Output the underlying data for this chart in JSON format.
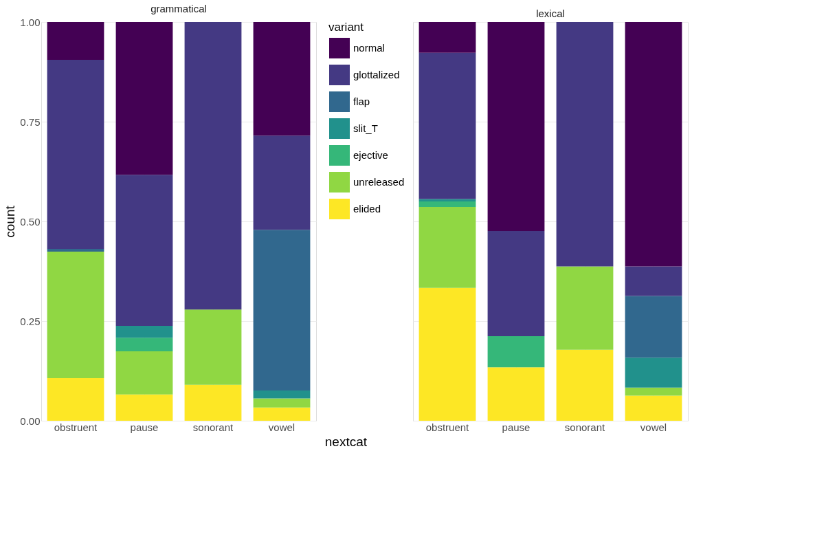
{
  "chart_data": [
    {
      "type": "bar",
      "title": "grammatical",
      "xlabel": "nextcat",
      "ylabel": "count",
      "legend_title": "variant",
      "legend": "right",
      "stacked": true,
      "grid": true,
      "categories": [
        "obstruent",
        "pause",
        "sonorant",
        "vowel"
      ],
      "ylim": [
        0,
        1
      ],
      "yticks": [
        {
          "value": 0,
          "label": "0.00"
        },
        {
          "value": 0.25,
          "label": "0.25"
        },
        {
          "value": 0.5,
          "label": "0.50"
        },
        {
          "value": 0.75,
          "label": "0.75"
        },
        {
          "value": 1,
          "label": "1.00"
        }
      ],
      "series": [
        {
          "name": "elided",
          "color": "#fde725",
          "values": [
            0.107,
            0.066,
            0.09,
            0.033
          ]
        },
        {
          "name": "unreleased",
          "color": "#90d743",
          "values": [
            0.317,
            0.108,
            0.189,
            0.023
          ]
        },
        {
          "name": "ejective",
          "color": "#35b779",
          "values": [
            0,
            0.034,
            0,
            0
          ]
        },
        {
          "name": "slit_T",
          "color": "#21918c",
          "values": [
            0,
            0.03,
            0,
            0.02
          ]
        },
        {
          "name": "flap",
          "color": "#31688e",
          "values": [
            0.007,
            0,
            0,
            0.403
          ]
        },
        {
          "name": "glottalized",
          "color": "#443983",
          "values": [
            0.474,
            0.379,
            0.721,
            0.236
          ]
        },
        {
          "name": "normal",
          "color": "#440154",
          "values": [
            0.095,
            0.383,
            0,
            0.285
          ]
        }
      ]
    },
    {
      "type": "bar",
      "title": "lexical",
      "stacked": true,
      "grid": true,
      "tick_labels": "x",
      "categories": [
        "obstruent",
        "pause",
        "sonorant",
        "vowel"
      ],
      "ylim": [
        0,
        1
      ],
      "yticks": [
        {
          "value": 0,
          "label": null
        },
        {
          "value": 0.25,
          "label": null
        },
        {
          "value": 0.5,
          "label": null
        },
        {
          "value": 0.75,
          "label": null
        },
        {
          "value": 1,
          "label": null
        }
      ],
      "series": [
        {
          "color": "#fde725",
          "values": [
            0.333,
            0.134,
            0.178,
            0.063
          ]
        },
        {
          "color": "#90d743",
          "values": [
            0.203,
            0,
            0.209,
            0.02
          ]
        },
        {
          "color": "#35b779",
          "values": [
            0.014,
            0.078,
            0,
            0
          ]
        },
        {
          "color": "#21918c",
          "values": [
            0.006,
            0,
            0,
            0.075
          ]
        },
        {
          "color": "#31688e",
          "values": [
            0,
            0,
            0,
            0.155
          ]
        },
        {
          "color": "#443983",
          "values": [
            0.367,
            0.264,
            0.613,
            0.074
          ]
        },
        {
          "color": "#440154",
          "values": [
            0.077,
            0.524,
            0,
            0.613
          ]
        }
      ]
    }
  ]
}
